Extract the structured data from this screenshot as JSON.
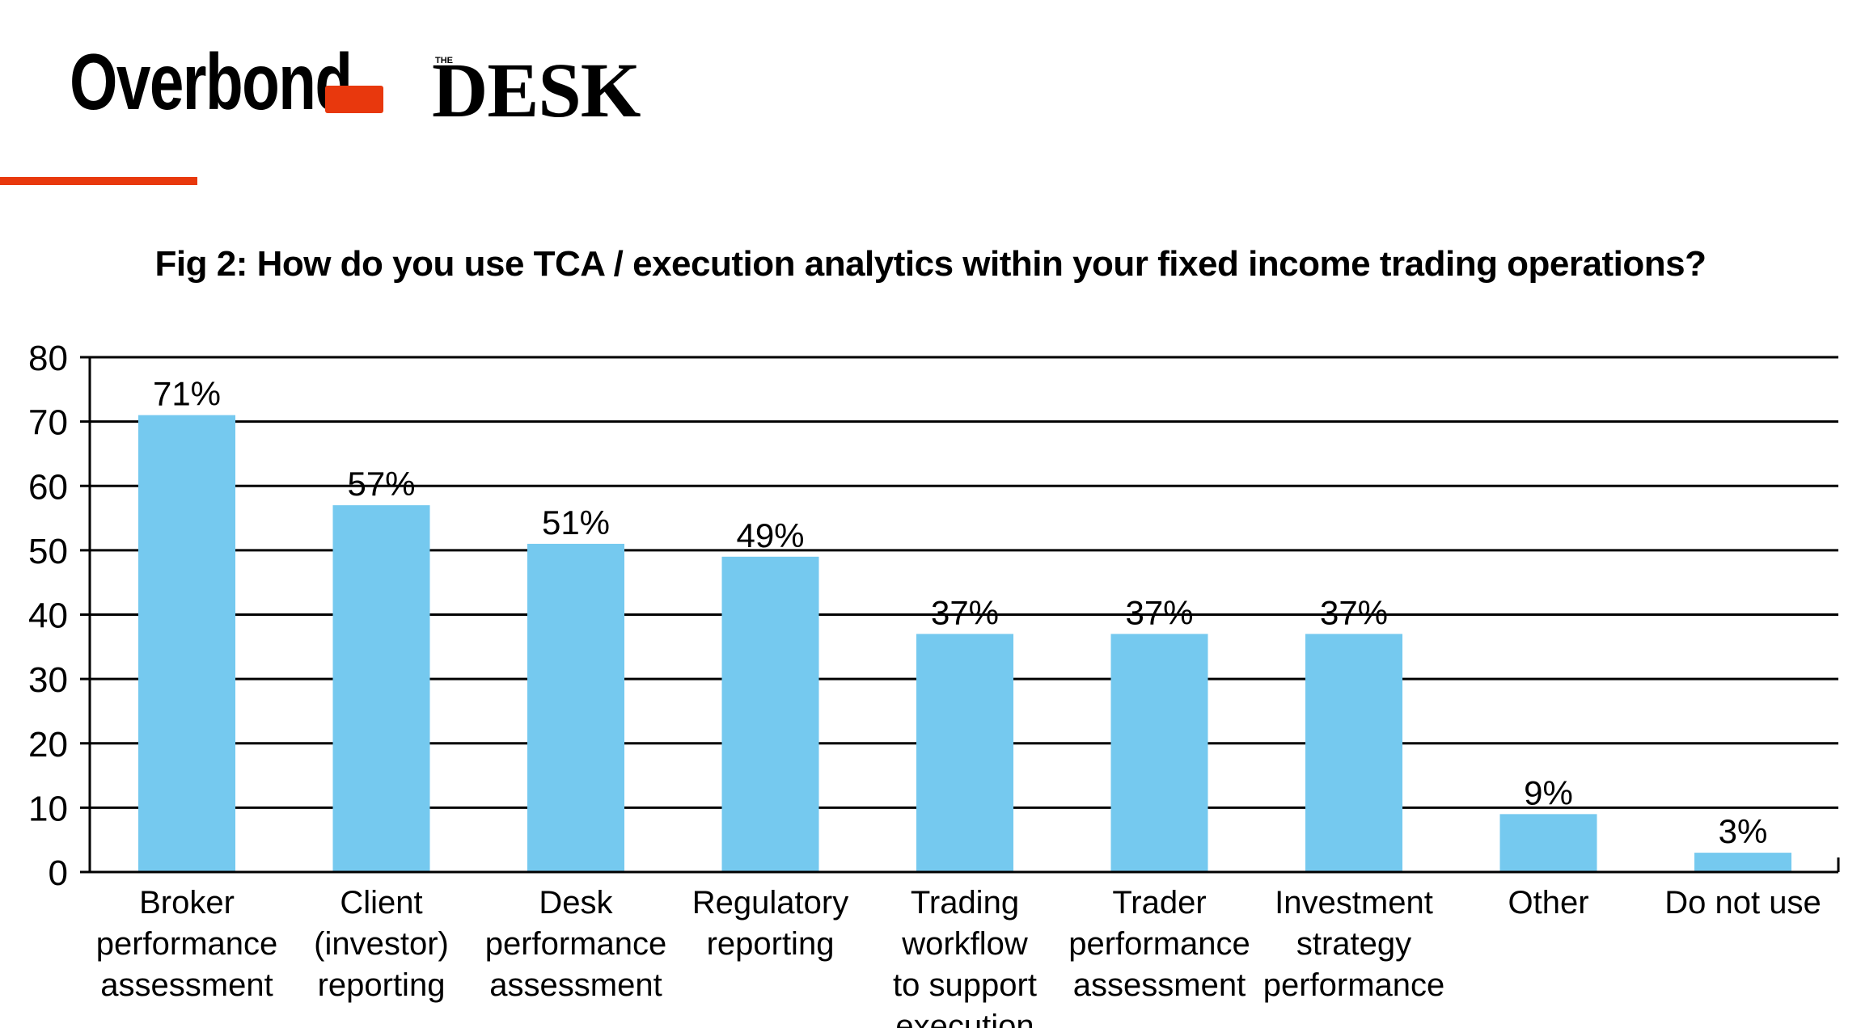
{
  "branding": {
    "overbond": "Overbond",
    "the": "THE",
    "desk": "DESK",
    "accent_color": "#e8380d"
  },
  "chart_data": {
    "type": "bar",
    "title": "Fig 2: How do you use TCA / execution analytics within your fixed income trading operations?",
    "xlabel": "",
    "ylabel": "",
    "ylim": [
      0,
      80
    ],
    "yticks": [
      0,
      10,
      20,
      30,
      40,
      50,
      60,
      70,
      80
    ],
    "grid": true,
    "bar_color": "#75c9ef",
    "categories": [
      [
        "Broker",
        "performance",
        "assessment"
      ],
      [
        "Client",
        "(investor)",
        "reporting"
      ],
      [
        "Desk",
        "performance",
        "assessment"
      ],
      [
        "Regulatory",
        "reporting"
      ],
      [
        "Trading",
        "workflow",
        "to support",
        "execution"
      ],
      [
        "Trader",
        "performance",
        "assessment"
      ],
      [
        "Investment",
        "strategy",
        "performance"
      ],
      [
        "Other"
      ],
      [
        "Do not use"
      ]
    ],
    "values": [
      71,
      57,
      51,
      49,
      37,
      37,
      37,
      9,
      3
    ],
    "data_labels": [
      "71%",
      "57%",
      "51%",
      "49%",
      "37%",
      "37%",
      "37%",
      "9%",
      "3%"
    ]
  }
}
